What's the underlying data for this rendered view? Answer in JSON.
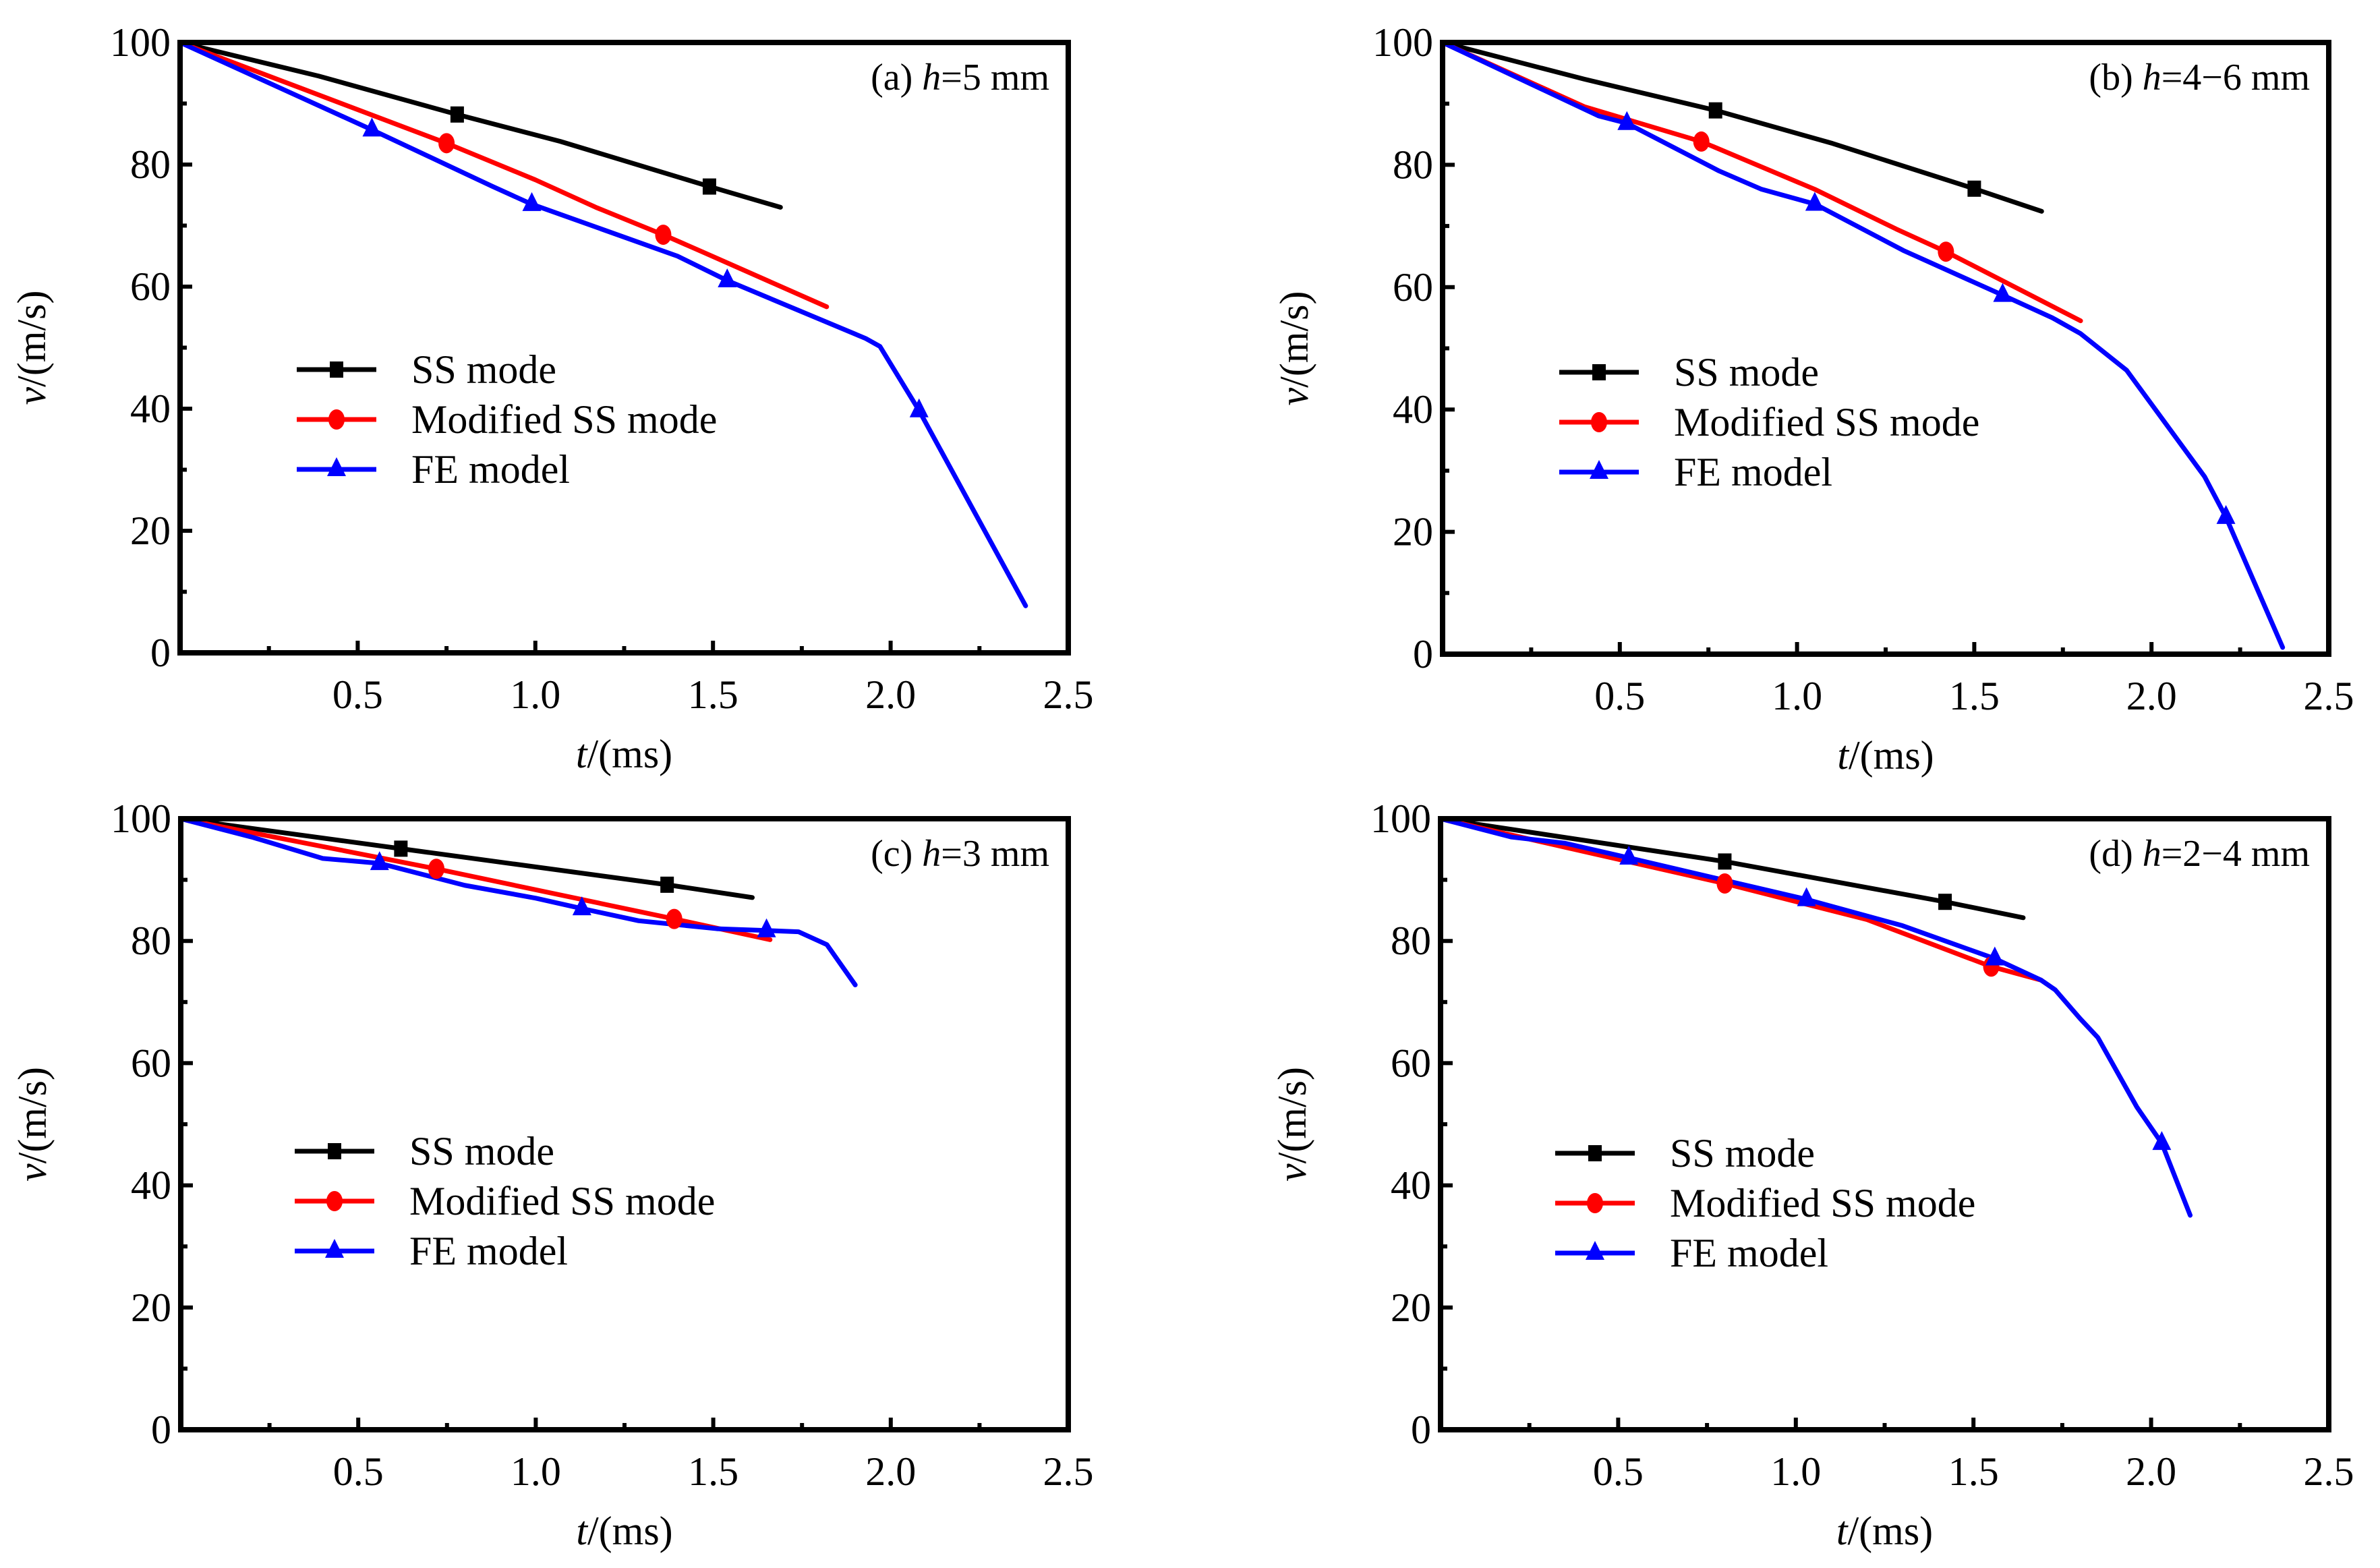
{
  "chart_data": [
    {
      "type": "line",
      "panel": "a",
      "annotation": {
        "prefix": "(a) ",
        "var": "h",
        "rest": "=5 mm"
      },
      "xlabel": {
        "var": "t",
        "rest": "/(ms)"
      },
      "ylabel": {
        "var": "v",
        "rest": "/(m/s)"
      },
      "xlim": [
        0,
        2.5
      ],
      "ylim": [
        0,
        100
      ],
      "xticks": [
        0.5,
        1.0,
        1.5,
        2.0,
        2.5
      ],
      "xtick_labels": [
        "0.5",
        "1.0",
        "1.5",
        "2.0",
        "2.5"
      ],
      "yticks": [
        0,
        20,
        40,
        60,
        80,
        100
      ],
      "ytick_labels": [
        "0",
        "20",
        "40",
        "60",
        "80",
        "100"
      ],
      "legend_position": "center-left",
      "series": [
        {
          "name": "SS mode",
          "color": "#000000",
          "marker": "square",
          "x": [
            0,
            0.39,
            0.78,
            1.07,
            1.49,
            1.69
          ],
          "y": [
            100,
            94.5,
            88.2,
            83.8,
            76.4,
            73.0
          ],
          "markers_x": [
            0.78,
            1.49
          ],
          "markers_y": [
            88.2,
            76.4
          ]
        },
        {
          "name": "Modified SS mode",
          "color": "#ff0000",
          "marker": "circle",
          "x": [
            0,
            0.75,
            1.0,
            1.17,
            1.36,
            1.47,
            1.82
          ],
          "y": [
            100,
            83.5,
            77.5,
            73.0,
            68.5,
            65.7,
            56.7
          ],
          "markers_x": [
            0.75,
            1.36
          ],
          "markers_y": [
            83.5,
            68.5
          ]
        },
        {
          "name": "FE model",
          "color": "#0000ff",
          "marker": "triangle",
          "x": [
            0,
            0.54,
            0.88,
            0.99,
            1.4,
            1.54,
            1.93,
            1.97,
            2.08,
            2.38
          ],
          "y": [
            100,
            85.7,
            76.4,
            73.5,
            65.0,
            61.0,
            51.5,
            50.2,
            39.7,
            7.7
          ],
          "markers_x": [
            0.54,
            0.99,
            1.54,
            2.08
          ],
          "markers_y": [
            85.7,
            73.5,
            61.0,
            39.7
          ]
        }
      ]
    },
    {
      "type": "line",
      "panel": "b",
      "annotation": {
        "prefix": "(b) ",
        "var": "h",
        "rest": "=4−6 mm"
      },
      "xlabel": {
        "var": "t",
        "rest": "/(ms)"
      },
      "ylabel": {
        "var": "v",
        "rest": "/(m/s)"
      },
      "xlim": [
        0,
        2.5
      ],
      "ylim": [
        0,
        100
      ],
      "xticks": [
        0.5,
        1.0,
        1.5,
        2.0,
        2.5
      ],
      "xtick_labels": [
        "0.5",
        "1.0",
        "1.5",
        "2.0",
        "2.5"
      ],
      "yticks": [
        0,
        20,
        40,
        60,
        80,
        100
      ],
      "ytick_labels": [
        "0",
        "20",
        "40",
        "60",
        "80",
        "100"
      ],
      "legend_position": "center-left",
      "series": [
        {
          "name": "SS mode",
          "color": "#000000",
          "marker": "square",
          "x": [
            0,
            0.4,
            0.77,
            1.1,
            1.5,
            1.69
          ],
          "y": [
            100,
            94.0,
            88.9,
            83.5,
            76.1,
            72.4
          ],
          "markers_x": [
            0.77,
            1.5
          ],
          "markers_y": [
            88.9,
            76.1
          ]
        },
        {
          "name": "Modified SS mode",
          "color": "#ff0000",
          "marker": "circle",
          "x": [
            0,
            0.4,
            0.73,
            1.05,
            1.28,
            1.42,
            1.8
          ],
          "y": [
            100,
            89.5,
            83.8,
            76.0,
            69.5,
            65.8,
            54.5
          ],
          "markers_x": [
            0.73,
            1.42
          ],
          "markers_y": [
            83.8,
            65.8
          ]
        },
        {
          "name": "FE model",
          "color": "#0000ff",
          "marker": "triangle",
          "x": [
            0,
            0.44,
            0.52,
            0.78,
            0.9,
            1.05,
            1.3,
            1.58,
            1.72,
            1.8,
            1.93,
            2.15,
            2.21,
            2.37
          ],
          "y": [
            100,
            88.0,
            86.8,
            79.0,
            76.0,
            73.6,
            66.0,
            58.7,
            55.0,
            52.4,
            46.4,
            29.0,
            22.4,
            1.1
          ],
          "markers_x": [
            0.52,
            1.05,
            1.58,
            2.21
          ],
          "markers_y": [
            86.8,
            73.6,
            58.7,
            22.4
          ]
        }
      ]
    },
    {
      "type": "line",
      "panel": "c",
      "annotation": {
        "prefix": "(c) ",
        "var": "h",
        "rest": "=3 mm"
      },
      "xlabel": {
        "var": "t",
        "rest": "/(ms)"
      },
      "ylabel": {
        "var": "v",
        "rest": "/(m/s)"
      },
      "xlim": [
        0,
        2.5
      ],
      "ylim": [
        0,
        100
      ],
      "xticks": [
        0.5,
        1.0,
        1.5,
        2.0,
        2.5
      ],
      "xtick_labels": [
        "0.5",
        "1.0",
        "1.5",
        "2.0",
        "2.5"
      ],
      "yticks": [
        0,
        20,
        40,
        60,
        80,
        100
      ],
      "ytick_labels": [
        "0",
        "20",
        "40",
        "60",
        "80",
        "100"
      ],
      "legend_position": "center-left",
      "series": [
        {
          "name": "SS mode",
          "color": "#000000",
          "marker": "square",
          "x": [
            0,
            0.62,
            1.37,
            1.61
          ],
          "y": [
            100,
            95.1,
            89.2,
            87.1
          ],
          "markers_x": [
            0.62,
            1.37
          ],
          "markers_y": [
            95.1,
            89.2
          ]
        },
        {
          "name": "Modified SS mode",
          "color": "#ff0000",
          "marker": "circle",
          "x": [
            0,
            0.72,
            1.39,
            1.66
          ],
          "y": [
            100,
            91.8,
            83.6,
            80.2
          ],
          "markers_x": [
            0.72,
            1.39
          ],
          "markers_y": [
            91.8,
            83.6
          ]
        },
        {
          "name": "FE model",
          "color": "#0000ff",
          "marker": "triangle",
          "x": [
            0,
            0.2,
            0.4,
            0.56,
            0.8,
            1.0,
            1.13,
            1.29,
            1.51,
            1.65,
            1.74,
            1.82,
            1.9
          ],
          "y": [
            100,
            97.0,
            93.5,
            92.7,
            89.1,
            87.0,
            85.3,
            83.3,
            82.0,
            81.7,
            81.5,
            79.4,
            72.8
          ],
          "markers_x": [
            0.56,
            1.13,
            1.65
          ],
          "markers_y": [
            92.7,
            85.3,
            81.7
          ]
        }
      ]
    },
    {
      "type": "line",
      "panel": "d",
      "annotation": {
        "prefix": "(d) ",
        "var": "h",
        "rest": "=2−4 mm"
      },
      "xlabel": {
        "var": "t",
        "rest": "/(ms)"
      },
      "ylabel": {
        "var": "v",
        "rest": "/(m/s)"
      },
      "xlim": [
        0,
        2.5
      ],
      "ylim": [
        0,
        100
      ],
      "xticks": [
        0.5,
        1.0,
        1.5,
        2.0,
        2.5
      ],
      "xtick_labels": [
        "0.5",
        "1.0",
        "1.5",
        "2.0",
        "2.5"
      ],
      "yticks": [
        0,
        20,
        40,
        60,
        80,
        100
      ],
      "ytick_labels": [
        "0",
        "20",
        "40",
        "60",
        "80",
        "100"
      ],
      "legend_position": "center-left",
      "series": [
        {
          "name": "SS mode",
          "color": "#000000",
          "marker": "square",
          "x": [
            0,
            0.8,
            1.42,
            1.64
          ],
          "y": [
            100,
            93.0,
            86.4,
            83.8
          ],
          "markers_x": [
            0.8,
            1.42
          ],
          "markers_y": [
            93.0,
            86.4
          ]
        },
        {
          "name": "Modified SS mode",
          "color": "#ff0000",
          "marker": "circle",
          "x": [
            0,
            0.3,
            0.8,
            1.2,
            1.55,
            1.69
          ],
          "y": [
            100,
            96.0,
            89.4,
            83.5,
            75.8,
            73.6
          ],
          "markers_x": [
            0.8,
            1.55
          ],
          "markers_y": [
            89.4,
            75.8
          ]
        },
        {
          "name": "FE model",
          "color": "#0000ff",
          "marker": "triangle",
          "x": [
            0,
            0.2,
            0.35,
            0.53,
            1.03,
            1.3,
            1.56,
            1.69,
            1.73,
            1.8,
            1.85,
            1.96,
            2.03,
            2.11
          ],
          "y": [
            100,
            97.0,
            96.0,
            93.6,
            86.8,
            82.5,
            77.1,
            73.6,
            72.0,
            67.3,
            64.2,
            52.8,
            46.9,
            35.1
          ],
          "markers_x": [
            0.53,
            1.03,
            1.56,
            2.03
          ],
          "markers_y": [
            93.6,
            86.8,
            77.1,
            46.9
          ]
        }
      ]
    }
  ]
}
